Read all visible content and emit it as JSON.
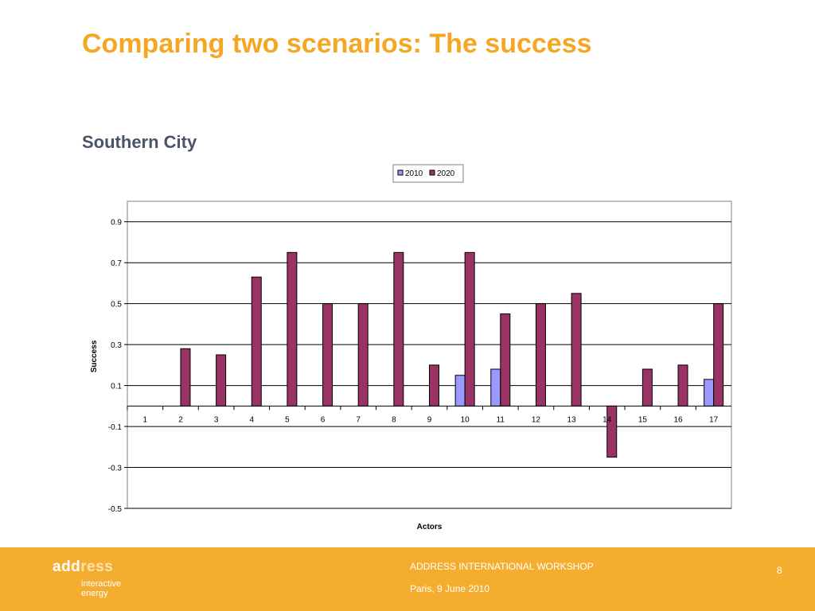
{
  "slide": {
    "title": "Comparing two scenarios: The success",
    "subtitle": "Southern City"
  },
  "footer": {
    "logo_part1": "add",
    "logo_part2": "ress",
    "logo_tag1": "interactive",
    "logo_tag2": "energy",
    "workshop": "ADDRESS INTERNATIONAL WORKSHOP",
    "place_date": "Paris, 9 June 2010",
    "page_number": "8"
  },
  "colors": {
    "title": "#f5a623",
    "series_2010": "#9999ff",
    "series_2020": "#993366",
    "footer": "#f5ad30"
  },
  "chart_data": {
    "type": "bar",
    "title": "",
    "xlabel": "Actors",
    "ylabel": "Success",
    "ylim": [
      -0.5,
      1.0
    ],
    "yticks": [
      -0.5,
      -0.3,
      -0.1,
      0.1,
      0.3,
      0.5,
      0.7,
      0.9
    ],
    "grid": true,
    "legend_position": "top-center",
    "categories": [
      "1",
      "2",
      "3",
      "4",
      "5",
      "6",
      "7",
      "8",
      "9",
      "10",
      "11",
      "12",
      "13",
      "14",
      "15",
      "16",
      "17"
    ],
    "series": [
      {
        "name": "2010",
        "values": [
          0,
          0,
          0,
          0,
          0,
          0,
          0,
          0,
          0,
          0.15,
          0.18,
          0,
          0,
          0,
          0,
          0,
          0.13
        ]
      },
      {
        "name": "2020",
        "values": [
          0,
          0.28,
          0.25,
          0.63,
          0.75,
          0.5,
          0.5,
          0.75,
          0.2,
          0.75,
          0.45,
          0.5,
          0.55,
          -0.25,
          0.18,
          0.2,
          0.5
        ]
      }
    ]
  }
}
